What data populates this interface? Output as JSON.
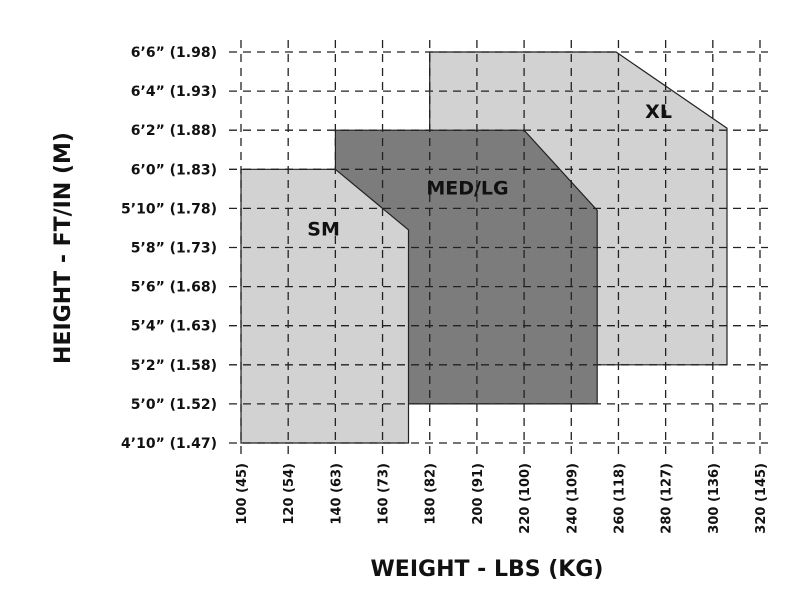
{
  "chart_data": {
    "type": "area",
    "title": "",
    "xlabel": "WEIGHT - LBS (KG)",
    "ylabel": "HEIGHT - FT/IN (M)",
    "xlim": [
      100,
      320
    ],
    "ylim_inches": [
      58,
      78
    ],
    "x_ticks": [
      {
        "value": 100,
        "label": "100 (45)"
      },
      {
        "value": 120,
        "label": "120 (54)"
      },
      {
        "value": 140,
        "label": "140 (63)"
      },
      {
        "value": 160,
        "label": "160 (73)"
      },
      {
        "value": 180,
        "label": "180 (82)"
      },
      {
        "value": 200,
        "label": "200 (91)"
      },
      {
        "value": 220,
        "label": "220 (100)"
      },
      {
        "value": 240,
        "label": "240 (109)"
      },
      {
        "value": 260,
        "label": "260 (118)"
      },
      {
        "value": 280,
        "label": "280 (127)"
      },
      {
        "value": 300,
        "label": "300 (136)"
      },
      {
        "value": 320,
        "label": "320 (145)"
      }
    ],
    "y_ticks": [
      {
        "value": 58,
        "label": "4’10” (1.47)"
      },
      {
        "value": 60,
        "label": "5’0” (1.52)"
      },
      {
        "value": 62,
        "label": "5’2” (1.58)"
      },
      {
        "value": 64,
        "label": "5’4” (1.63)"
      },
      {
        "value": 66,
        "label": "5’6” (1.68)"
      },
      {
        "value": 68,
        "label": "5’8” (1.73)"
      },
      {
        "value": 70,
        "label": "5’10” (1.78)"
      },
      {
        "value": 72,
        "label": "6’0” (1.83)"
      },
      {
        "value": 74,
        "label": "6’2” (1.88)"
      },
      {
        "value": 76,
        "label": "6’4” (1.93)"
      },
      {
        "value": 78,
        "label": "6’6” (1.98)"
      }
    ],
    "grid": true,
    "series": [
      {
        "name": "XL",
        "color": "#d2d2d2",
        "polygon": [
          [
            180,
            62
          ],
          [
            180,
            78
          ],
          [
            259,
            78
          ],
          [
            306,
            74.1
          ],
          [
            306,
            62
          ]
        ]
      },
      {
        "name": "MED/LG",
        "color": "#7c7c7c",
        "polygon": [
          [
            140,
            60
          ],
          [
            140,
            74
          ],
          [
            220,
            74
          ],
          [
            251,
            69.9
          ],
          [
            251,
            60
          ]
        ]
      },
      {
        "name": "SM",
        "color": "#d2d2d2",
        "polygon": [
          [
            100,
            58
          ],
          [
            100,
            72
          ],
          [
            140,
            72
          ],
          [
            171,
            68.9
          ],
          [
            171,
            58
          ]
        ]
      }
    ],
    "region_labels": [
      {
        "name": "XL",
        "x": 277,
        "y": 74.9
      },
      {
        "name": "MED/LG",
        "x": 196,
        "y": 71.0
      },
      {
        "name": "SM",
        "x": 135,
        "y": 68.9
      }
    ]
  }
}
